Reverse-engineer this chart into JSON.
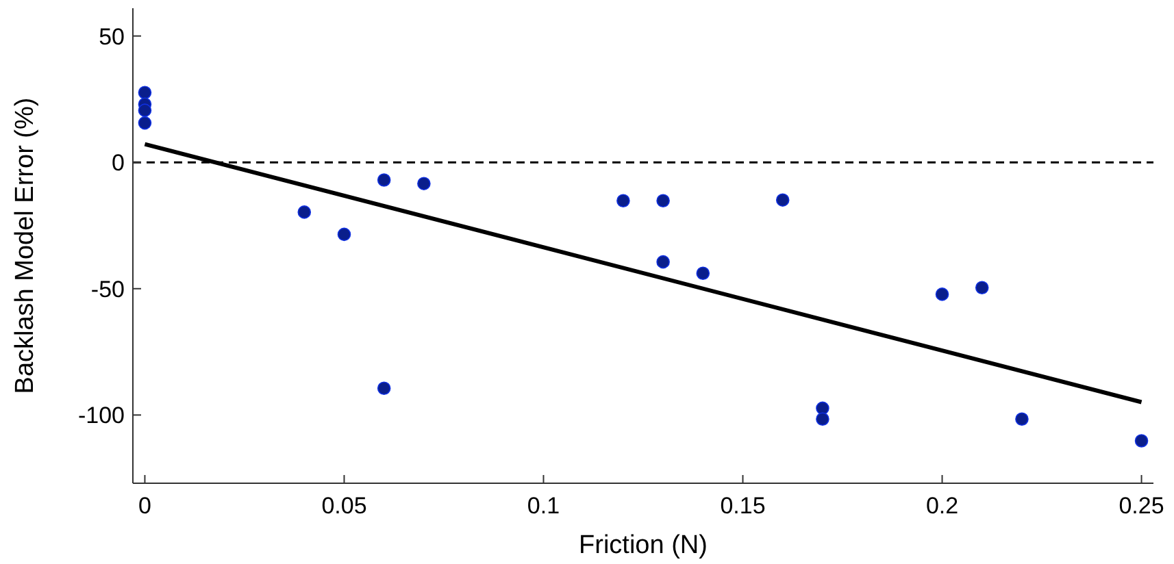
{
  "chart_data": {
    "type": "scatter",
    "xlabel": "Friction (N)",
    "ylabel": "Backlash Model Error (%)",
    "xlim": [
      -0.003,
      0.253
    ],
    "xticks": [
      0,
      0.05,
      0.1,
      0.15,
      0.2,
      0.25
    ],
    "ylim": [
      -127,
      61
    ],
    "yticks": [
      -100,
      -50,
      0,
      50
    ],
    "grid": false,
    "marker": "circle",
    "series": [
      {
        "color": "#0a1e8c",
        "x": [
          0,
          0,
          0,
          0,
          0.04,
          0.05,
          0.06,
          0.06,
          0.07,
          0.12,
          0.13,
          0.13,
          0.14,
          0.16,
          0.17,
          0.17,
          0.2,
          0.21,
          0.22,
          0.25
        ],
        "values": [
          27.6,
          23,
          20.6,
          15.6,
          -19.7,
          -28.5,
          -7,
          -89.4,
          -8.4,
          -15.2,
          -15.2,
          -39.4,
          -43.9,
          -14.9,
          -97.3,
          -101.6,
          -52.2,
          -49.6,
          -101.6,
          -110.2
        ]
      },
      {
        "type": "line",
        "color": "#000000",
        "line_style": "solid",
        "marker": "none",
        "x": [
          0,
          0.25
        ],
        "values": [
          7.2,
          -94.9
        ]
      }
    ],
    "ref_lines": [
      {
        "axis": "y",
        "value": 0,
        "color": "#000000",
        "line_style": "dashed"
      }
    ]
  }
}
